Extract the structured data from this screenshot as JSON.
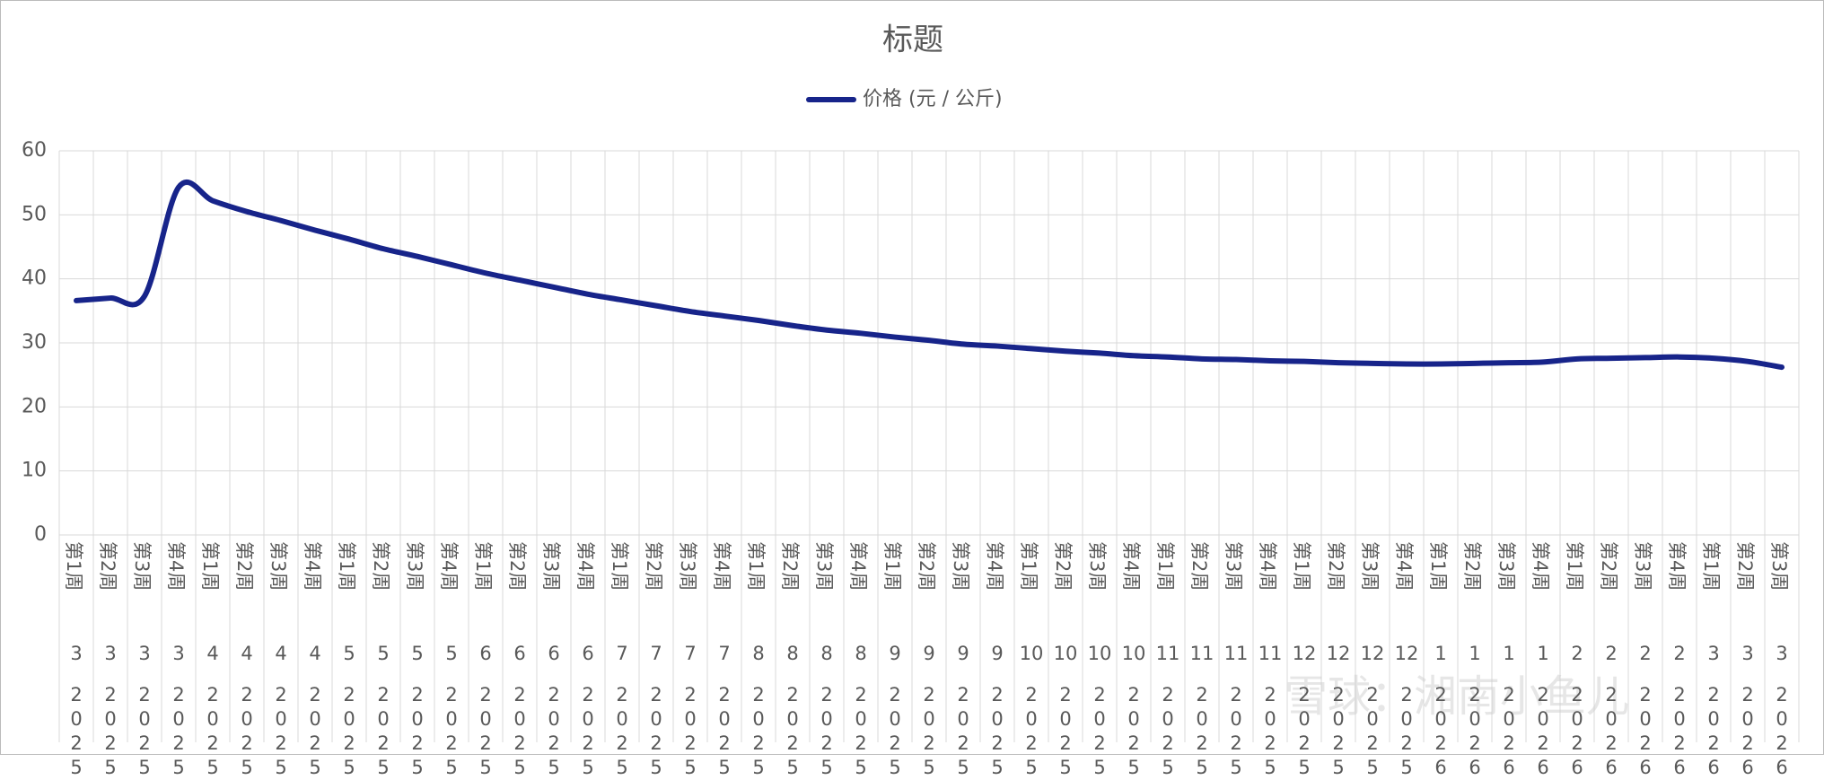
{
  "chart_data": {
    "type": "line",
    "title": "标题",
    "categories": [
      [
        "第1周",
        "3",
        "2025"
      ],
      [
        "第2周",
        "3",
        "2025"
      ],
      [
        "第3周",
        "3",
        "2025"
      ],
      [
        "第4周",
        "3",
        "2025"
      ],
      [
        "第1周",
        "4",
        "2025"
      ],
      [
        "第2周",
        "4",
        "2025"
      ],
      [
        "第3周",
        "4",
        "2025"
      ],
      [
        "第4周",
        "4",
        "2025"
      ],
      [
        "第1周",
        "5",
        "2025"
      ],
      [
        "第2周",
        "5",
        "2025"
      ],
      [
        "第3周",
        "5",
        "2025"
      ],
      [
        "第4周",
        "5",
        "2025"
      ],
      [
        "第1周",
        "6",
        "2025"
      ],
      [
        "第2周",
        "6",
        "2025"
      ],
      [
        "第3周",
        "6",
        "2025"
      ],
      [
        "第4周",
        "6",
        "2025"
      ],
      [
        "第1周",
        "7",
        "2025"
      ],
      [
        "第2周",
        "7",
        "2025"
      ],
      [
        "第3周",
        "7",
        "2025"
      ],
      [
        "第4周",
        "7",
        "2025"
      ],
      [
        "第1周",
        "8",
        "2025"
      ],
      [
        "第2周",
        "8",
        "2025"
      ],
      [
        "第3周",
        "8",
        "2025"
      ],
      [
        "第4周",
        "8",
        "2025"
      ],
      [
        "第1周",
        "9",
        "2025"
      ],
      [
        "第2周",
        "9",
        "2025"
      ],
      [
        "第3周",
        "9",
        "2025"
      ],
      [
        "第4周",
        "9",
        "2025"
      ],
      [
        "第1周",
        "10",
        "2025"
      ],
      [
        "第2周",
        "10",
        "2025"
      ],
      [
        "第3周",
        "10",
        "2025"
      ],
      [
        "第4周",
        "10",
        "2025"
      ],
      [
        "第1周",
        "11",
        "2025"
      ],
      [
        "第2周",
        "11",
        "2025"
      ],
      [
        "第3周",
        "11",
        "2025"
      ],
      [
        "第4周",
        "11",
        "2025"
      ],
      [
        "第1周",
        "12",
        "2025"
      ],
      [
        "第2周",
        "12",
        "2025"
      ],
      [
        "第3周",
        "12",
        "2025"
      ],
      [
        "第4周",
        "12",
        "2025"
      ],
      [
        "第1周",
        "1",
        "2026"
      ],
      [
        "第2周",
        "1",
        "2026"
      ],
      [
        "第3周",
        "1",
        "2026"
      ],
      [
        "第4周",
        "1",
        "2026"
      ],
      [
        "第1周",
        "2",
        "2026"
      ],
      [
        "第2周",
        "2",
        "2026"
      ],
      [
        "第3周",
        "2",
        "2026"
      ],
      [
        "第4周",
        "2",
        "2026"
      ],
      [
        "第1周",
        "3",
        "2026"
      ],
      [
        "第2周",
        "3",
        "2026"
      ],
      [
        "第3周",
        "3",
        "2026"
      ]
    ],
    "series": [
      {
        "name": "价格 (元 / 公斤)",
        "color": "#17248a",
        "values": [
          36.6,
          37.0,
          37.3,
          54.3,
          52.2,
          50.5,
          49.1,
          47.6,
          46.2,
          44.7,
          43.5,
          42.2,
          40.9,
          39.8,
          38.7,
          37.6,
          36.7,
          35.8,
          34.9,
          34.2,
          33.5,
          32.7,
          32.0,
          31.5,
          30.9,
          30.4,
          29.8,
          29.5,
          29.1,
          28.7,
          28.4,
          28.0,
          27.8,
          27.5,
          27.4,
          27.2,
          27.1,
          26.9,
          26.8,
          26.7,
          26.7,
          26.8,
          26.9,
          27.0,
          27.5,
          27.6,
          27.7,
          27.8,
          27.6,
          27.1,
          26.2
        ]
      }
    ],
    "ylim": [
      0,
      60
    ],
    "yticks": [
      0,
      10,
      20,
      30,
      40,
      50,
      60
    ],
    "grid": true,
    "legend": "top",
    "watermark": "雪球：湘南小鱼儿"
  }
}
